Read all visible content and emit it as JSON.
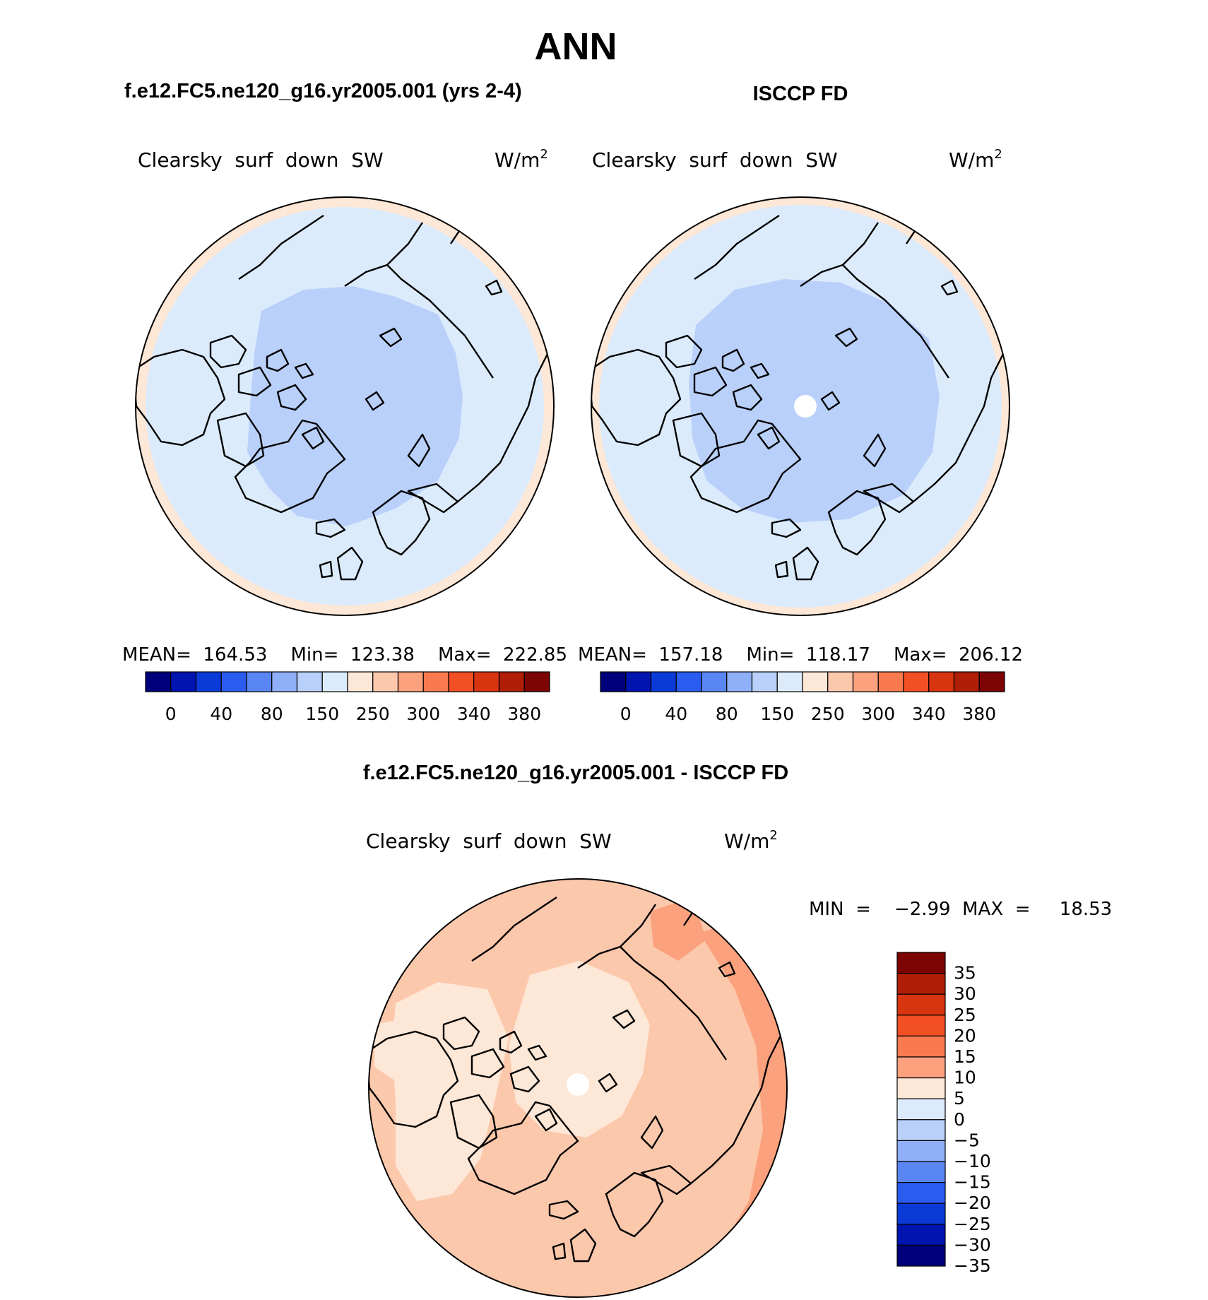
{
  "figure": {
    "main_title": "ANN",
    "panel_a_title": "f.e12.FC5.ne120_g16.yr2005.001 (yrs 2-4)",
    "panel_b_title": "ISCCP FD",
    "panel_c_title": "f.e12.FC5.ne120_g16.yr2005.001 - ISCCP FD"
  },
  "panels": {
    "a": {
      "variable": "Clearsky  surf  down  SW",
      "units": "W/m",
      "units_sup": "2",
      "stats": "MEAN=  164.53    Min=  123.38    Max=  222.85"
    },
    "b": {
      "variable": "Clearsky  surf  down  SW",
      "units": "W/m",
      "units_sup": "2",
      "stats": "MEAN=  157.18    Min=  118.17    Max=  206.12"
    },
    "c": {
      "variable": "Clearsky  surf  down  SW",
      "units": "W/m",
      "units_sup": "2",
      "minmax": "MIN  =    −2.99  MAX  =     18.53"
    }
  },
  "chart_data": [
    {
      "type": "heatmap",
      "projection": "north-polar-stereographic",
      "title": "f.e12.FC5.ne120_g16.yr2005.001 (yrs 2-4)",
      "variable": "Clearsky surf down SW",
      "units": "W/m2",
      "mean": 164.53,
      "min": 123.38,
      "max": 222.85,
      "colorbar_labels": [
        "0",
        "40",
        "80",
        "150",
        "250",
        "300",
        "340",
        "380"
      ],
      "colorbar_colors": [
        "#00007a",
        "#0014b0",
        "#0a3ad8",
        "#2a5cf0",
        "#5a86f4",
        "#8fb0f8",
        "#b9d0fa",
        "#dcebfc",
        "#fde7d6",
        "#fcc8ac",
        "#fba17e",
        "#fa7a4f",
        "#f24f24",
        "#d93410",
        "#b01e08",
        "#7d0404"
      ]
    },
    {
      "type": "heatmap",
      "projection": "north-polar-stereographic",
      "title": "ISCCP FD",
      "variable": "Clearsky surf down SW",
      "units": "W/m2",
      "mean": 157.18,
      "min": 118.17,
      "max": 206.12,
      "colorbar_labels": [
        "0",
        "40",
        "80",
        "150",
        "250",
        "300",
        "340",
        "380"
      ],
      "colorbar_colors": [
        "#00007a",
        "#0014b0",
        "#0a3ad8",
        "#2a5cf0",
        "#5a86f4",
        "#8fb0f8",
        "#b9d0fa",
        "#dcebfc",
        "#fde7d6",
        "#fcc8ac",
        "#fba17e",
        "#fa7a4f",
        "#f24f24",
        "#d93410",
        "#b01e08",
        "#7d0404"
      ]
    },
    {
      "type": "heatmap",
      "projection": "north-polar-stereographic",
      "title": "f.e12.FC5.ne120_g16.yr2005.001 - ISCCP FD",
      "variable": "Clearsky surf down SW",
      "units": "W/m2",
      "min": -2.99,
      "max": 18.53,
      "colorbar_labels": [
        "35",
        "30",
        "25",
        "20",
        "15",
        "10",
        "5",
        "0",
        "−5",
        "−10",
        "−15",
        "−20",
        "−25",
        "−30",
        "−35"
      ],
      "colorbar_colors": [
        "#7d0404",
        "#b01e08",
        "#d93410",
        "#f24f24",
        "#fa7a4f",
        "#fba17e",
        "#fde7d6",
        "#dcebfc",
        "#b9d0fa",
        "#8fb0f8",
        "#5a86f4",
        "#2a5cf0",
        "#0a3ad8",
        "#0014b0",
        "#00007a"
      ]
    }
  ]
}
